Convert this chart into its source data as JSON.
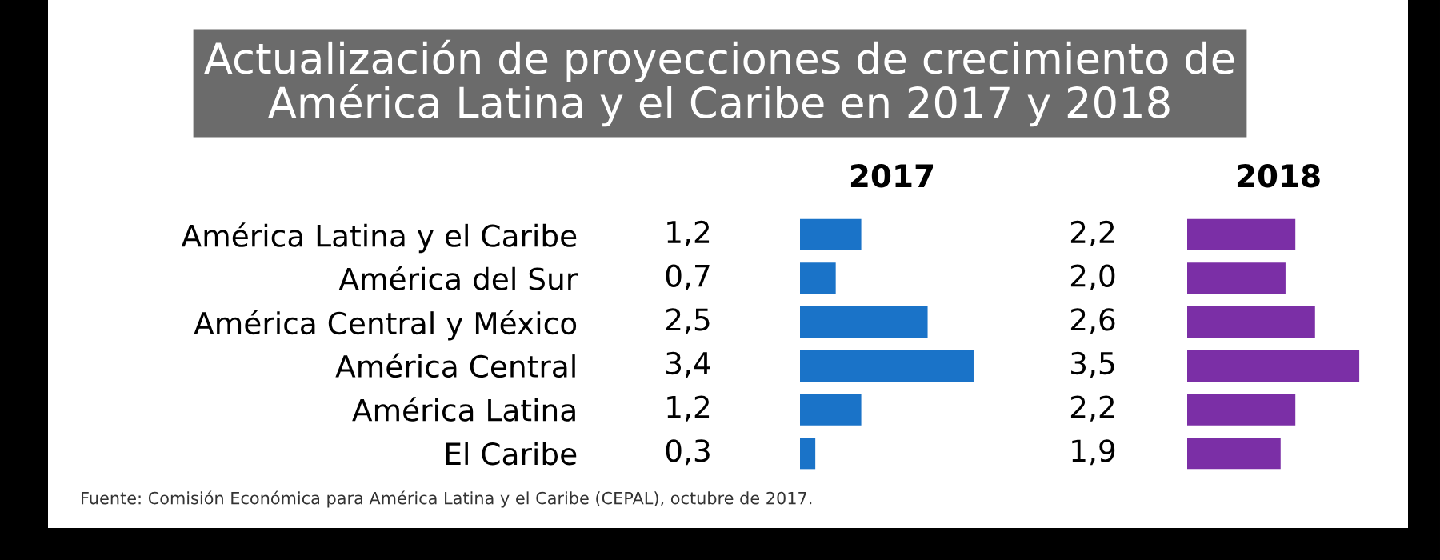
{
  "chart_data": [
    {
      "type": "bar",
      "orientation": "horizontal",
      "title": "Actualización de proyecciones de crecimiento de\nAmérica Latina y el Caribe en 2017 y 2018",
      "subtitle": "2017",
      "categories": [
        "América Latina y el Caribe",
        "América del Sur",
        "América Central y México",
        "América Central",
        "América Latina",
        "El Caribe"
      ],
      "values": [
        1.2,
        0.7,
        2.5,
        3.4,
        1.2,
        0.3
      ],
      "value_labels": [
        "1,2",
        "0,7",
        "2,5",
        "3,4",
        "1,2",
        "0,3"
      ],
      "color": "#1a73c8",
      "tick_labels": "y",
      "annotations": [
        "Fuente: Comisión Económica para América Latina y el Caribe (CEPAL), octubre de 2017."
      ]
    },
    {
      "type": "bar",
      "orientation": "horizontal",
      "title": "2018",
      "categories": [
        null,
        null,
        null,
        null,
        null,
        null
      ],
      "values": [
        2.2,
        2.0,
        2.6,
        3.5,
        2.2,
        1.9
      ],
      "value_labels": [
        "2,2",
        "2,0",
        "2,6",
        "3,5",
        "2,2",
        "1,9"
      ],
      "color": "#7b2fa6",
      "tick_labels": false
    }
  ]
}
